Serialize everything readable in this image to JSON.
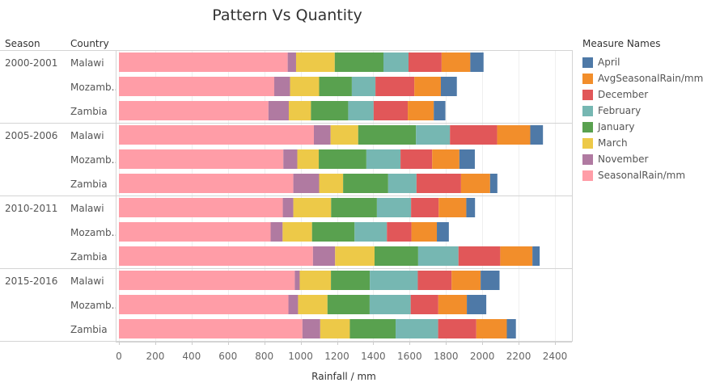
{
  "chart_data": {
    "type": "bar",
    "orientation": "horizontal",
    "stacked": true,
    "title": "Pattern Vs Quantity",
    "xlabel": "Rainfall / mm",
    "row_headers": [
      "Season",
      "Country"
    ],
    "xlim": [
      0,
      2450
    ],
    "xticks": [
      0,
      200,
      400,
      600,
      800,
      1000,
      1200,
      1400,
      1600,
      1800,
      2000,
      2200,
      2400
    ],
    "grid": true,
    "legend_title": "Measure Names",
    "legend_position": "right",
    "groups": [
      {
        "season": "2000-2001",
        "rows": [
          {
            "country": "Malawi",
            "values": [
              929,
              46,
              213,
              268,
              138,
              182,
              158,
              73
            ]
          },
          {
            "country": "Mozamb..",
            "values": [
              855,
              87,
              160,
              180,
              130,
              214,
              146,
              88
            ]
          },
          {
            "country": "Zambia",
            "values": [
              823,
              112,
              122,
              205,
              140,
              188,
              143,
              64
            ]
          }
        ]
      },
      {
        "season": "2005-2006",
        "rows": [
          {
            "country": "Malawi",
            "values": [
              1073,
              92,
              152,
              318,
              187,
              260,
              182,
              70
            ]
          },
          {
            "country": "Mozamb..",
            "values": [
              905,
              77,
              118,
              262,
              188,
              174,
              150,
              85
            ]
          },
          {
            "country": "Zambia",
            "values": [
              960,
              142,
              132,
              248,
              156,
              245,
              160,
              40
            ]
          }
        ]
      },
      {
        "season": "2010-2011",
        "rows": [
          {
            "country": "Malawi",
            "values": [
              902,
              58,
              208,
              252,
              188,
              152,
              152,
              48
            ]
          },
          {
            "country": "Mozamb..",
            "values": [
              835,
              66,
              162,
              234,
              178,
              135,
              140,
              66
            ]
          },
          {
            "country": "Zambia",
            "values": [
              1068,
              122,
              217,
              240,
              222,
              230,
              177,
              40
            ]
          }
        ]
      },
      {
        "season": "2015-2016",
        "rows": [
          {
            "country": "Malawi",
            "values": [
              968,
              27,
              172,
              214,
              264,
              186,
              160,
              104
            ]
          },
          {
            "country": "Mozamb..",
            "values": [
              933,
              53,
              162,
              232,
              226,
              152,
              157,
              107
            ]
          },
          {
            "country": "Zambia",
            "values": [
              1010,
              98,
              163,
              252,
              234,
              210,
              168,
              50
            ]
          }
        ]
      }
    ],
    "stack_order": [
      "SeasonalRain/mm",
      "November",
      "March",
      "January",
      "February",
      "December",
      "AvgSeasonalRain/mm",
      "April"
    ],
    "series": [
      {
        "name": "April",
        "color": "#4e79a7"
      },
      {
        "name": "AvgSeasonalRain/mm",
        "color": "#f28e2b"
      },
      {
        "name": "December",
        "color": "#e15759"
      },
      {
        "name": "February",
        "color": "#76b7b2"
      },
      {
        "name": "January",
        "color": "#59a14f"
      },
      {
        "name": "March",
        "color": "#edc948"
      },
      {
        "name": "November",
        "color": "#b07aa1"
      },
      {
        "name": "SeasonalRain/mm",
        "color": "#ff9da7"
      }
    ]
  }
}
